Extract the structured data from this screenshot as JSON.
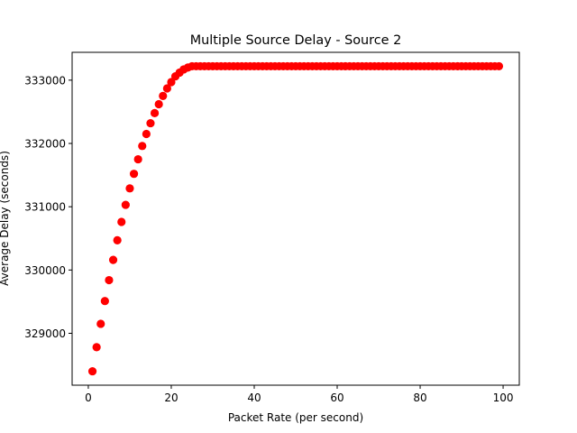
{
  "chart_data": {
    "type": "scatter",
    "title": "Multiple Source Delay - Source 2",
    "xlabel": "Packet Rate (per second)",
    "ylabel": "Average Delay (seconds)",
    "xlim": [
      -3.9,
      103.9
    ],
    "ylim": [
      328180,
      333440
    ],
    "xticks": [
      0,
      20,
      40,
      60,
      80,
      100
    ],
    "yticks": [
      329000,
      330000,
      331000,
      332000,
      333000
    ],
    "xtick_labels": [
      "0",
      "20",
      "40",
      "60",
      "80",
      "100"
    ],
    "ytick_labels": [
      "329000",
      "330000",
      "331000",
      "332000",
      "333000"
    ],
    "grid": false,
    "marker_color": "#ff0000",
    "series": [
      {
        "x": [
          1,
          2,
          3,
          4,
          5,
          6,
          7,
          8,
          9,
          10,
          11,
          12,
          13,
          14,
          15,
          16,
          17,
          18,
          19,
          20,
          21,
          22,
          23,
          24,
          25,
          26,
          27,
          28,
          29,
          30,
          31,
          32,
          33,
          34,
          35,
          36,
          37,
          38,
          39,
          40,
          41,
          42,
          43,
          44,
          45,
          46,
          47,
          48,
          49,
          50,
          51,
          52,
          53,
          54,
          55,
          56,
          57,
          58,
          59,
          60,
          61,
          62,
          63,
          64,
          65,
          66,
          67,
          68,
          69,
          70,
          71,
          72,
          73,
          74,
          75,
          76,
          77,
          78,
          79,
          80,
          81,
          82,
          83,
          84,
          85,
          86,
          87,
          88,
          89,
          90,
          91,
          92,
          93,
          94,
          95,
          96,
          97,
          98,
          99
        ],
        "y": [
          328400,
          328780,
          329150,
          329510,
          329840,
          330160,
          330470,
          330760,
          331030,
          331290,
          331520,
          331750,
          331960,
          332150,
          332320,
          332480,
          332620,
          332750,
          332870,
          332970,
          333060,
          333120,
          333170,
          333200,
          333220,
          333220,
          333220,
          333220,
          333220,
          333220,
          333220,
          333220,
          333220,
          333220,
          333220,
          333220,
          333220,
          333220,
          333220,
          333220,
          333220,
          333220,
          333220,
          333220,
          333220,
          333220,
          333220,
          333220,
          333220,
          333220,
          333220,
          333220,
          333220,
          333220,
          333220,
          333220,
          333220,
          333220,
          333220,
          333220,
          333220,
          333220,
          333220,
          333220,
          333220,
          333220,
          333220,
          333220,
          333220,
          333220,
          333220,
          333220,
          333220,
          333220,
          333220,
          333220,
          333220,
          333220,
          333220,
          333220,
          333220,
          333220,
          333220,
          333220,
          333220,
          333220,
          333220,
          333220,
          333220,
          333220,
          333220,
          333220,
          333220,
          333220,
          333220,
          333220,
          333220,
          333220,
          333220
        ]
      }
    ]
  }
}
